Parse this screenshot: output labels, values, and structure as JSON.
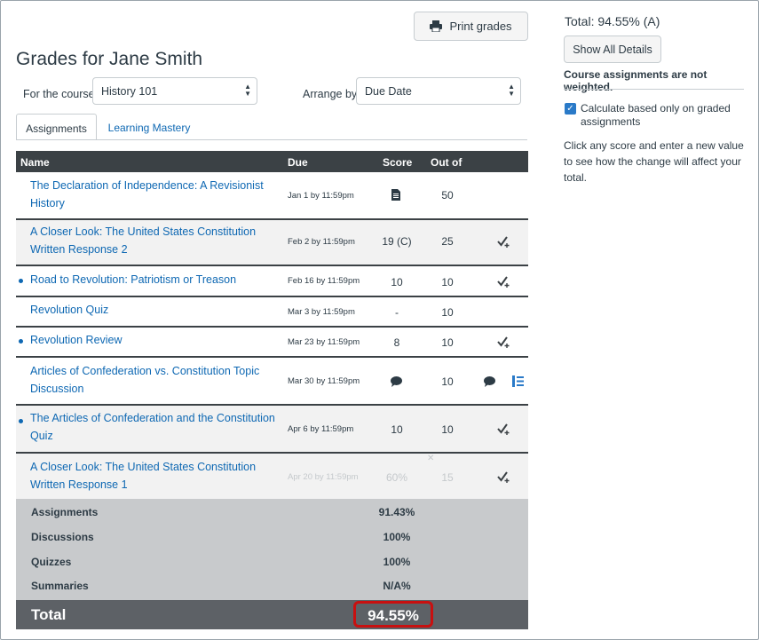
{
  "header": {
    "print_label": "Print grades",
    "title": "Grades for Jane Smith"
  },
  "filters": {
    "course_label": "For the course",
    "course_value": "History 101",
    "arrange_label": "Arrange by",
    "arrange_value": "Due Date"
  },
  "tabs": [
    "Assignments",
    "Learning Mastery"
  ],
  "columns": {
    "name": "Name",
    "due": "Due",
    "score": "Score",
    "out_of": "Out of"
  },
  "rows": [
    {
      "name": "The Declaration of Independence: A Revisionist History",
      "due": "Jan 1 by 11:59pm",
      "score": "",
      "score_icon": "document-icon",
      "out_of": "50",
      "status_icon": "",
      "unread": false
    },
    {
      "name": "A Closer Look: The United States Constitution Written Response 2",
      "due": "Feb 2 by 11:59pm",
      "score": "19 (C)",
      "out_of": "25",
      "status_icon": "graded-check-icon",
      "unread": false
    },
    {
      "name": "Road to Revolution: Patriotism or Treason",
      "due": "Feb 16 by 11:59pm",
      "score": "10",
      "out_of": "10",
      "status_icon": "graded-check-icon",
      "unread": true
    },
    {
      "name": "Revolution Quiz",
      "due": "Mar 3 by 11:59pm",
      "score": "-",
      "out_of": "10",
      "status_icon": "",
      "unread": false
    },
    {
      "name": "Revolution Review",
      "due": "Mar 23 by 11:59pm",
      "score": "8",
      "out_of": "10",
      "status_icon": "graded-check-icon",
      "unread": true
    },
    {
      "name": "Articles of Confederation vs. Constitution Topic Discussion",
      "due": "Mar 30 by 11:59pm",
      "score": "",
      "score_icon": "comment-icon",
      "out_of": "10",
      "status_icon": "comment-icon",
      "extra_icon": "rubric-icon",
      "unread": false
    },
    {
      "name": "The Articles of Confederation and the Constitution Quiz",
      "due": "Apr 6 by 11:59pm",
      "score": "10",
      "out_of": "10",
      "status_icon": "graded-check-icon",
      "unread": true
    },
    {
      "name": "A Closer Look: The United States Constitution Written Response 1",
      "due": "Apr 20 by 11:59pm",
      "score": "60%",
      "out_of": "15",
      "status_icon": "graded-check-icon",
      "unread": false,
      "faded": true
    }
  ],
  "summary": [
    {
      "label": "Assignments",
      "value": "91.43%"
    },
    {
      "label": "Discussions",
      "value": "100%"
    },
    {
      "label": "Quizzes",
      "value": "100%"
    },
    {
      "label": "Summaries",
      "value": "N/A%"
    }
  ],
  "total": {
    "label": "Total",
    "value": "94.55%"
  },
  "sidebar": {
    "total_text": "Total: 94.55% (A)",
    "show_details_label": "Show All Details",
    "weight_note": "Course assignments are not weighted.",
    "checkbox_label": "Calculate based only on graded assignments",
    "checkbox_checked": true,
    "hint": "Click any score and enter a new value to see how the change will affect your total."
  },
  "colors": {
    "link": "#0e68b3",
    "header_bg": "#3b4145",
    "total_bg": "#5d6166",
    "highlight": "#c81010"
  }
}
